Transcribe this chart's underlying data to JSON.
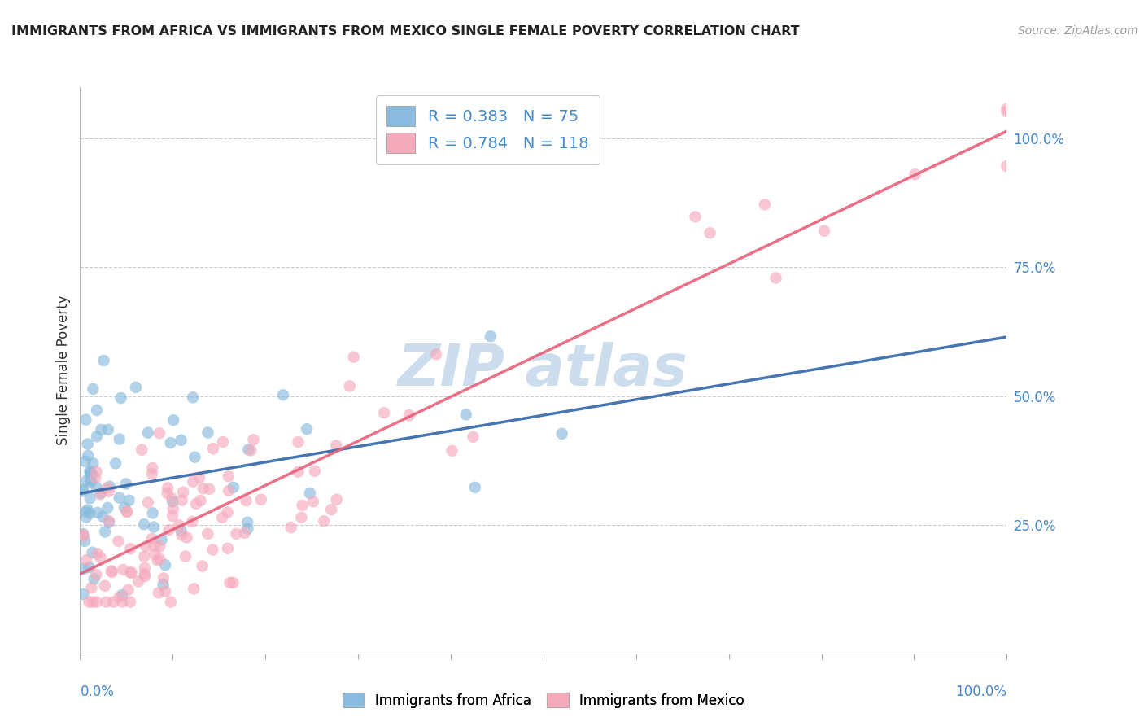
{
  "title": "IMMIGRANTS FROM AFRICA VS IMMIGRANTS FROM MEXICO SINGLE FEMALE POVERTY CORRELATION CHART",
  "source": "Source: ZipAtlas.com",
  "ylabel": "Single Female Poverty",
  "africa_R": 0.383,
  "africa_N": 75,
  "mexico_R": 0.784,
  "mexico_N": 118,
  "africa_color": "#88BBDD",
  "africa_color_edge": "#88BBDD",
  "mexico_color": "#F5AABC",
  "mexico_color_edge": "#F5AABC",
  "africa_line_color": "#3366AA",
  "mexico_line_color": "#E8607A",
  "grid_color": "#CCCCCC",
  "background_color": "#FFFFFF",
  "title_color": "#222222",
  "source_color": "#999999",
  "right_tick_color": "#4488CC",
  "bottom_tick_color": "#4488CC",
  "watermark_color": "#CCDDEE",
  "legend_edge_color": "#CCCCCC"
}
